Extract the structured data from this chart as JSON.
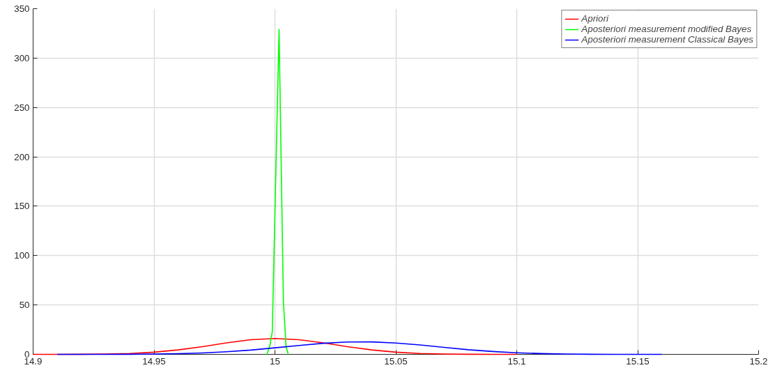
{
  "chart_data": {
    "type": "line",
    "xlim": [
      14.9,
      15.2
    ],
    "ylim": [
      0,
      350
    ],
    "xticks": [
      14.9,
      14.95,
      15,
      15.05,
      15.1,
      15.15,
      15.2
    ],
    "yticks": [
      0,
      50,
      100,
      150,
      200,
      250,
      300,
      350
    ],
    "grid": true,
    "legend": "top right",
    "marker": "none",
    "line_style": "solid",
    "series": [
      {
        "name": "Apriori",
        "color": "#ff0000",
        "x": [
          14.9,
          14.91,
          14.92,
          14.93,
          14.94,
          14.95,
          14.96,
          14.97,
          14.98,
          14.99,
          15.0,
          15.01,
          15.02,
          15.03,
          15.04,
          15.05,
          15.06,
          15.07,
          15.08,
          15.09,
          15.1
        ],
        "values": [
          0,
          0,
          0.1,
          0.3,
          0.9,
          2.2,
          4.5,
          7.8,
          11.6,
          14.8,
          16,
          14.8,
          11.6,
          7.8,
          4.5,
          2.2,
          0.9,
          0.3,
          0.1,
          0,
          0
        ]
      },
      {
        "name": "Aposteriori measurement modified Bayes",
        "color": "#00ff00",
        "x": [
          14.9967,
          14.9979,
          14.9989,
          15.0017,
          15.0035,
          15.0046,
          15.0055
        ],
        "values": [
          0,
          9,
          23,
          329,
          53,
          8,
          0
        ]
      },
      {
        "name": "Aposteriori measurement Classical Bayes",
        "color": "#0000ff",
        "x": [
          14.91,
          14.92,
          14.93,
          14.94,
          14.95,
          14.96,
          14.97,
          14.98,
          14.99,
          15.0,
          15.01,
          15.02,
          15.03,
          15.04,
          15.05,
          15.06,
          15.07,
          15.08,
          15.09,
          15.1,
          15.11,
          15.12,
          15.13,
          15.14,
          15.15,
          15.16
        ],
        "values": [
          0,
          0,
          0,
          0.1,
          0.3,
          0.7,
          1.4,
          2.6,
          4.3,
          6.6,
          9.0,
          11.2,
          12.5,
          12.6,
          11.5,
          9.5,
          7.1,
          4.7,
          2.9,
          1.6,
          0.8,
          0.4,
          0.1,
          0,
          0,
          0
        ]
      }
    ]
  }
}
